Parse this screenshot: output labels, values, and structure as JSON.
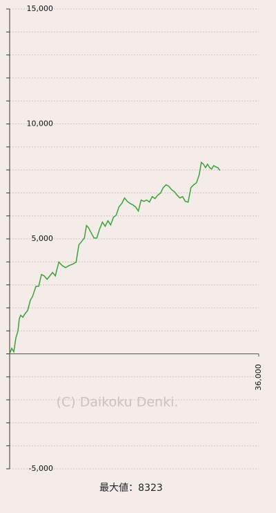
{
  "chart_data": {
    "type": "line",
    "ylim": [
      -5000,
      15000
    ],
    "yticks": [
      {
        "value": -5000,
        "label": "-5,000"
      },
      {
        "value": 5000,
        "label": "5,000"
      },
      {
        "value": 10000,
        "label": "10,000"
      },
      {
        "value": 15000,
        "label": "15,000"
      }
    ],
    "y_minor_ticks": [
      -5000,
      -4000,
      -3000,
      -2000,
      -1000,
      0,
      1000,
      2000,
      3000,
      4000,
      5000,
      6000,
      7000,
      8000,
      9000,
      10000,
      11000,
      12000,
      13000,
      14000,
      15000
    ],
    "xlim": [
      0,
      36000
    ],
    "xticks": [
      {
        "value": 36000,
        "label": "36,000"
      }
    ],
    "grid": true,
    "watermark": "(C) Daikoku Denki.",
    "footer": "最大値：8323",
    "x": [
      0,
      300,
      600,
      900,
      1200,
      1400,
      1600,
      1900,
      2200,
      2600,
      3000,
      3300,
      3800,
      4200,
      4600,
      5000,
      5400,
      5800,
      6200,
      6600,
      7100,
      7600,
      8100,
      8600,
      9100,
      9600,
      10000,
      10400,
      10800,
      11100,
      11400,
      11800,
      12200,
      12600,
      13000,
      13400,
      13800,
      14200,
      14600,
      15000,
      15400,
      15800,
      16200,
      16600,
      17000,
      17400,
      17800,
      18200,
      18600,
      19000,
      19400,
      19800,
      20200,
      20600,
      21000,
      21400,
      21800,
      22200,
      22600,
      23000,
      23400,
      23800,
      24200,
      24600,
      25000,
      25400,
      25800,
      26200,
      26600,
      27000,
      27400,
      27700,
      28000,
      28300,
      28600,
      28900,
      29200,
      29500,
      29800,
      30100,
      30400
    ],
    "series": [
      {
        "color": "#3aa03a",
        "values": [
          0,
          240,
          90,
          690,
          990,
          1530,
          1680,
          1590,
          1740,
          1890,
          2340,
          2490,
          2940,
          2940,
          3450,
          3390,
          3240,
          3390,
          3540,
          3390,
          3990,
          3840,
          3750,
          3840,
          3900,
          3990,
          4740,
          4890,
          5040,
          5580,
          5490,
          5250,
          5040,
          5040,
          5430,
          5730,
          5550,
          5790,
          5610,
          5940,
          6030,
          6390,
          6540,
          6780,
          6630,
          6540,
          6480,
          6390,
          6210,
          6690,
          6630,
          6690,
          6600,
          6840,
          6750,
          6900,
          6990,
          7230,
          7350,
          7290,
          7140,
          7050,
          6900,
          6780,
          6840,
          6630,
          6600,
          7230,
          7350,
          7440,
          7800,
          8323,
          8250,
          8100,
          8250,
          8100,
          8040,
          8190,
          8130,
          8100,
          7980
        ]
      }
    ]
  }
}
